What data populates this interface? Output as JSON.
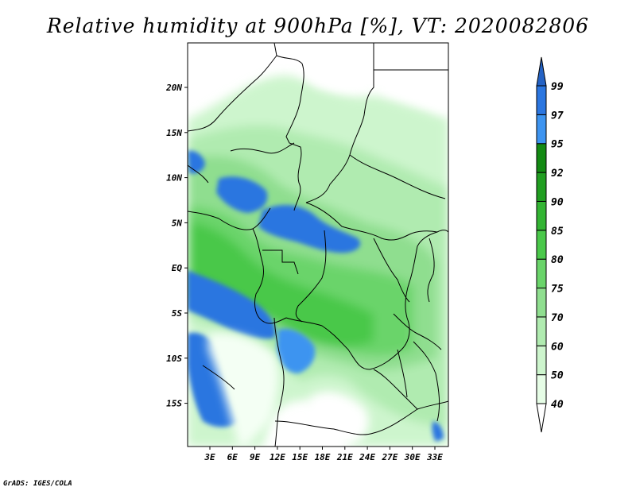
{
  "title": "Relative humidity at 900hPa [%], VT: 2020082806",
  "credit": "GrADS: IGES/COLA",
  "map": {
    "lat_labels": [
      "20N",
      "15N",
      "10N",
      "5N",
      "EQ",
      "5S",
      "10S",
      "15S"
    ],
    "lon_labels": [
      "3E",
      "6E",
      "9E",
      "12E",
      "15E",
      "18E",
      "21E",
      "24E",
      "27E",
      "30E",
      "33E"
    ]
  },
  "colorbar": {
    "levels": [
      "40",
      "50",
      "60",
      "70",
      "75",
      "80",
      "85",
      "90",
      "92",
      "95",
      "97",
      "99"
    ],
    "colors": [
      "#ffffff",
      "#e6fde6",
      "#cdf5cd",
      "#b0ebb0",
      "#8fde8f",
      "#6ad46a",
      "#4ac84a",
      "#33b433",
      "#219e21",
      "#138a13",
      "#3d94f0",
      "#2b76e0",
      "#2462c4"
    ]
  },
  "colors": {
    "dry": "#ffffff",
    "moist_green": "#4ac84a",
    "saturated_blue": "#2b76e0"
  }
}
